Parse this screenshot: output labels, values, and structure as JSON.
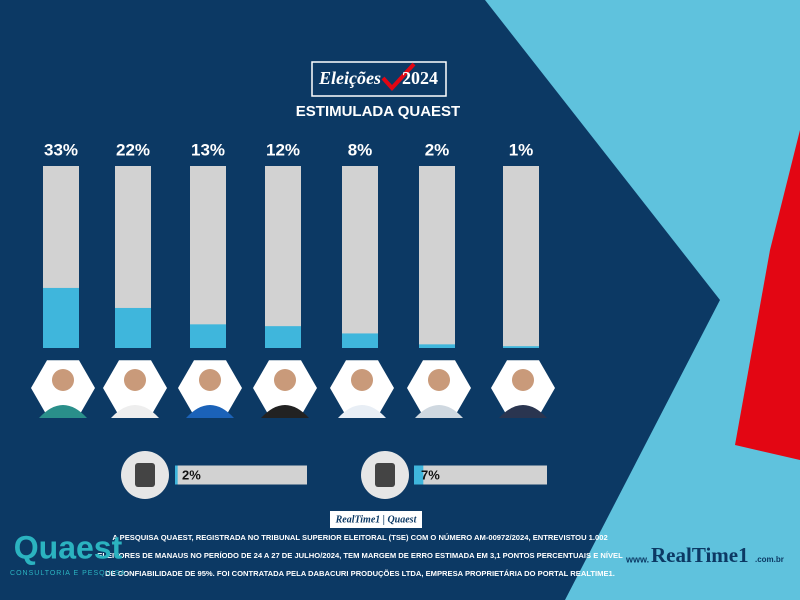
{
  "header": {
    "brand": "Eleições",
    "year": "2024",
    "subtitle": "ESTIMULADA QUAEST"
  },
  "chart_data": [
    {
      "type": "bar",
      "categories": [
        null,
        null,
        null,
        null,
        null,
        null,
        null
      ],
      "values": [
        33,
        22,
        13,
        12,
        8,
        2,
        1
      ],
      "value_labels": [
        "33%",
        "22%",
        "13%",
        "12%",
        "8%",
        "2%",
        "1%"
      ],
      "ylim": [
        0,
        100
      ],
      "color": "#3fb6dc",
      "track_color": "#d2d2d2"
    },
    {
      "type": "hbar",
      "categories": [
        null,
        null
      ],
      "values": [
        2,
        7
      ],
      "value_labels": [
        "2%",
        "7%"
      ],
      "xlim": [
        0,
        100
      ],
      "color": "#3fb6dc",
      "track_color": "#d2d2d2"
    }
  ],
  "source_tag": "RealTime1 | Quaest",
  "footer": {
    "lines": [
      "A PESQUISA QUAEST, REGISTRADA NO TRIBUNAL SUPERIOR ELEITORAL (TSE) COM O NÚMERO AM-00972/2024, ENTREVISTOU 1.002",
      "ELEITORES DE MANAUS NO PERÍODO DE 24 A 27 DE JULHO/2024, TEM MARGEM DE ERRO ESTIMADA EM 3,1 PONTOS PERCENTUAIS E NÍVEL",
      "DE CONFIABILIDADE DE 95%. FOI CONTRATADA PELA DABACURI PRODUÇÕES LTDA, EMPRESA PROPRIETÁRIA DO PORTAL REALTIME1."
    ]
  },
  "logo_left": {
    "name": "Quaest",
    "tagline": "CONSULTORIA E PESQUISA"
  },
  "logo_right": {
    "prefix": "www.",
    "name": "RealTime1",
    "suffix": ".com.br"
  }
}
